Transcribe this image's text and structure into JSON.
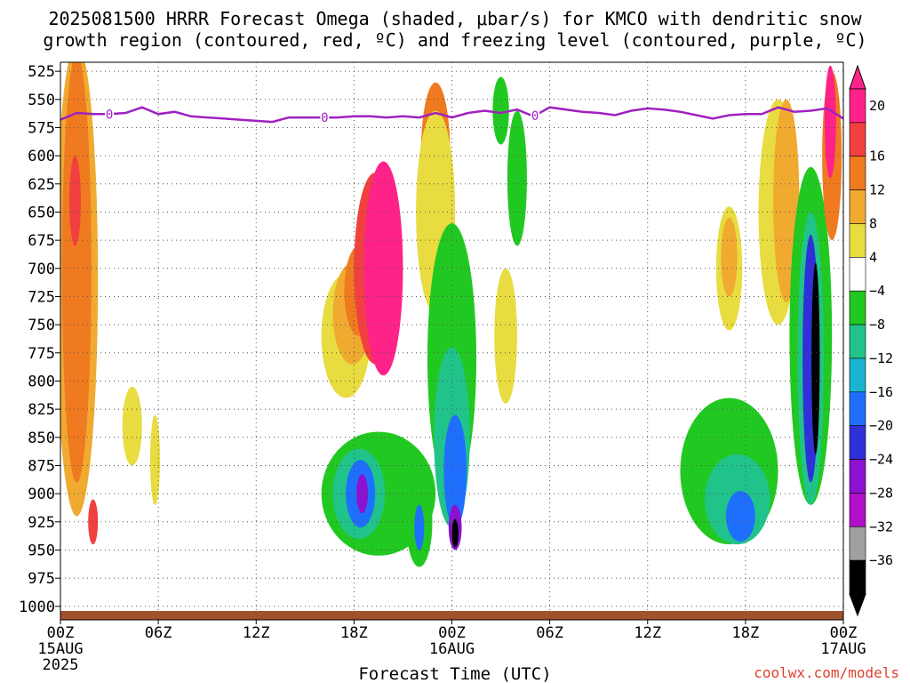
{
  "title_lines": [
    "2025081500 HRRR Forecast Omega (shaded, μbar/s) for KMCO with dendritic snow",
    "growth region (contoured, red, ºC) and freezing level (contoured, purple, ºC)"
  ],
  "xlabel": "Forecast Time (UTC)",
  "credit": "coolwx.com/models",
  "colors": {
    "freezing_line": "#a020c0",
    "ground": "#a0522d",
    "credit": "#e0402f",
    "grid": "#555555"
  },
  "chart_data": {
    "type": "heatmap",
    "title": "2025081500 HRRR Forecast Omega (shaded, μbar/s) for KMCO with dendritic snow growth region (contoured, red, ºC) and freezing level (contoured, purple, ºC)",
    "xlabel": "Forecast Time (UTC)",
    "ylabel": "",
    "x_ticks": [
      {
        "hour": 0,
        "line1": "00Z",
        "line2": "15AUG",
        "line3": "2025"
      },
      {
        "hour": 6,
        "line1": "06Z",
        "line2": "",
        "line3": ""
      },
      {
        "hour": 12,
        "line1": "12Z",
        "line2": "",
        "line3": ""
      },
      {
        "hour": 18,
        "line1": "18Z",
        "line2": "",
        "line3": ""
      },
      {
        "hour": 24,
        "line1": "00Z",
        "line2": "16AUG",
        "line3": ""
      },
      {
        "hour": 30,
        "line1": "06Z",
        "line2": "",
        "line3": ""
      },
      {
        "hour": 36,
        "line1": "12Z",
        "line2": "",
        "line3": ""
      },
      {
        "hour": 42,
        "line1": "18Z",
        "line2": "",
        "line3": ""
      },
      {
        "hour": 48,
        "line1": "00Z",
        "line2": "17AUG",
        "line3": ""
      }
    ],
    "y_ticks": [
      525,
      550,
      575,
      600,
      625,
      650,
      675,
      700,
      725,
      750,
      775,
      800,
      825,
      850,
      875,
      900,
      925,
      950,
      975,
      1000
    ],
    "x_range": [
      0,
      48
    ],
    "y_range_hPa": [
      517,
      1012
    ],
    "grid": true,
    "colorbar": {
      "labels": [
        "20",
        "16",
        "12",
        "8",
        "4",
        "−4",
        "−8",
        "−12",
        "−16",
        "−20",
        "−24",
        "−28",
        "−32",
        "−36"
      ],
      "colors": [
        "#ff2288",
        "#f04040",
        "#f07a20",
        "#f0aa30",
        "#e8dc40",
        "#ffffff",
        "#22c822",
        "#20c48a",
        "#1ab4d0",
        "#1f6fff",
        "#3030d8",
        "#8a12d0",
        "#b010c8",
        "#a0a0a0",
        "#000000"
      ]
    },
    "shading_levels": [
      -36,
      -32,
      -28,
      -24,
      -20,
      -16,
      -12,
      -8,
      -4,
      4,
      8,
      12,
      16,
      20
    ],
    "freezing_level": {
      "label": "0",
      "label_hours": [
        3.0,
        16.2,
        29.1
      ],
      "points": [
        [
          0,
          568
        ],
        [
          1,
          562
        ],
        [
          2,
          563
        ],
        [
          3,
          563
        ],
        [
          4,
          562
        ],
        [
          5,
          557
        ],
        [
          6,
          563
        ],
        [
          7,
          561
        ],
        [
          8,
          565
        ],
        [
          9,
          566
        ],
        [
          10,
          567
        ],
        [
          11,
          568
        ],
        [
          12,
          569
        ],
        [
          13,
          570
        ],
        [
          14,
          566
        ],
        [
          15,
          566
        ],
        [
          16,
          566
        ],
        [
          17,
          566
        ],
        [
          18,
          565
        ],
        [
          19,
          565
        ],
        [
          20,
          566
        ],
        [
          21,
          565
        ],
        [
          22,
          566
        ],
        [
          23,
          562
        ],
        [
          24,
          566
        ],
        [
          25,
          562
        ],
        [
          26,
          560
        ],
        [
          27,
          562
        ],
        [
          28,
          559
        ],
        [
          29,
          565
        ],
        [
          30,
          557
        ],
        [
          31,
          559
        ],
        [
          32,
          561
        ],
        [
          33,
          562
        ],
        [
          34,
          564
        ],
        [
          35,
          560
        ],
        [
          36,
          558
        ],
        [
          37,
          559
        ],
        [
          38,
          561
        ],
        [
          39,
          564
        ],
        [
          40,
          567
        ],
        [
          41,
          564
        ],
        [
          42,
          563
        ],
        [
          43,
          563
        ],
        [
          44,
          557
        ],
        [
          45,
          561
        ],
        [
          46,
          560
        ],
        [
          47,
          558
        ],
        [
          48,
          567
        ]
      ]
    },
    "omega_cells": [
      {
        "level": 8,
        "x": 1.0,
        "p": 710,
        "rx": 1.3,
        "ry": 420
      },
      {
        "level": 12,
        "x": 1.0,
        "p": 700,
        "rx": 0.9,
        "ry": 380
      },
      {
        "level": 16,
        "x": 0.9,
        "p": 640,
        "rx": 0.35,
        "ry": 80
      },
      {
        "level": 16,
        "x": 2.0,
        "p": 925,
        "rx": 0.3,
        "ry": 40
      },
      {
        "level": 4,
        "x": 4.4,
        "p": 840,
        "rx": 0.6,
        "ry": 70
      },
      {
        "level": 4,
        "x": 5.8,
        "p": 870,
        "rx": 0.3,
        "ry": 80
      },
      {
        "level": 4,
        "x": 17.5,
        "p": 760,
        "rx": 1.5,
        "ry": 110
      },
      {
        "level": 8,
        "x": 17.9,
        "p": 740,
        "rx": 1.2,
        "ry": 90
      },
      {
        "level": 12,
        "x": 18.3,
        "p": 720,
        "rx": 0.9,
        "ry": 80
      },
      {
        "level": 16,
        "x": 19.3,
        "p": 700,
        "rx": 1.3,
        "ry": 170
      },
      {
        "level": 20,
        "x": 19.8,
        "p": 700,
        "rx": 1.2,
        "ry": 190
      },
      {
        "level": 16,
        "x": 23.0,
        "p": 640,
        "rx": 0.7,
        "ry": 150
      },
      {
        "level": 12,
        "x": 23.0,
        "p": 600,
        "rx": 0.9,
        "ry": 130
      },
      {
        "level": 4,
        "x": 23.0,
        "p": 650,
        "rx": 1.2,
        "ry": 180
      },
      {
        "level": 4,
        "x": 27.3,
        "p": 760,
        "rx": 0.7,
        "ry": 120
      },
      {
        "level": -8,
        "x": 19.5,
        "p": 900,
        "rx": 3.5,
        "ry": 110
      },
      {
        "level": -12,
        "x": 18.3,
        "p": 900,
        "rx": 1.6,
        "ry": 80
      },
      {
        "level": -20,
        "x": 18.4,
        "p": 900,
        "rx": 0.9,
        "ry": 60
      },
      {
        "level": -28,
        "x": 18.5,
        "p": 900,
        "rx": 0.35,
        "ry": 35
      },
      {
        "level": -8,
        "x": 24.0,
        "p": 780,
        "rx": 1.5,
        "ry": 240
      },
      {
        "level": -12,
        "x": 24.0,
        "p": 850,
        "rx": 1.1,
        "ry": 160
      },
      {
        "level": -20,
        "x": 24.2,
        "p": 880,
        "rx": 0.7,
        "ry": 100
      },
      {
        "level": -28,
        "x": 24.2,
        "p": 930,
        "rx": 0.4,
        "ry": 40
      },
      {
        "level": -36,
        "x": 24.2,
        "p": 935,
        "rx": 0.2,
        "ry": 25
      },
      {
        "level": -8,
        "x": 22.0,
        "p": 925,
        "rx": 0.8,
        "ry": 80
      },
      {
        "level": -20,
        "x": 22.0,
        "p": 930,
        "rx": 0.3,
        "ry": 40
      },
      {
        "level": -8,
        "x": 28.0,
        "p": 620,
        "rx": 0.6,
        "ry": 120
      },
      {
        "level": -8,
        "x": 27.0,
        "p": 560,
        "rx": 0.5,
        "ry": 60
      },
      {
        "level": -8,
        "x": 41.0,
        "p": 880,
        "rx": 3.0,
        "ry": 130
      },
      {
        "level": -12,
        "x": 41.5,
        "p": 905,
        "rx": 2.0,
        "ry": 80
      },
      {
        "level": -20,
        "x": 41.7,
        "p": 920,
        "rx": 0.9,
        "ry": 45
      },
      {
        "level": 4,
        "x": 41.0,
        "p": 700,
        "rx": 0.8,
        "ry": 110
      },
      {
        "level": 8,
        "x": 41.0,
        "p": 690,
        "rx": 0.5,
        "ry": 70
      },
      {
        "level": 4,
        "x": 44.0,
        "p": 650,
        "rx": 1.2,
        "ry": 200
      },
      {
        "level": 8,
        "x": 44.5,
        "p": 640,
        "rx": 0.8,
        "ry": 180
      },
      {
        "level": -8,
        "x": 46.0,
        "p": 760,
        "rx": 1.3,
        "ry": 300
      },
      {
        "level": -12,
        "x": 46.0,
        "p": 780,
        "rx": 0.8,
        "ry": 260
      },
      {
        "level": -24,
        "x": 46.0,
        "p": 780,
        "rx": 0.5,
        "ry": 220
      },
      {
        "level": -36,
        "x": 46.3,
        "p": 780,
        "rx": 0.25,
        "ry": 170
      },
      {
        "level": 12,
        "x": 47.3,
        "p": 600,
        "rx": 0.6,
        "ry": 150
      },
      {
        "level": 20,
        "x": 47.2,
        "p": 570,
        "rx": 0.35,
        "ry": 100
      }
    ]
  }
}
